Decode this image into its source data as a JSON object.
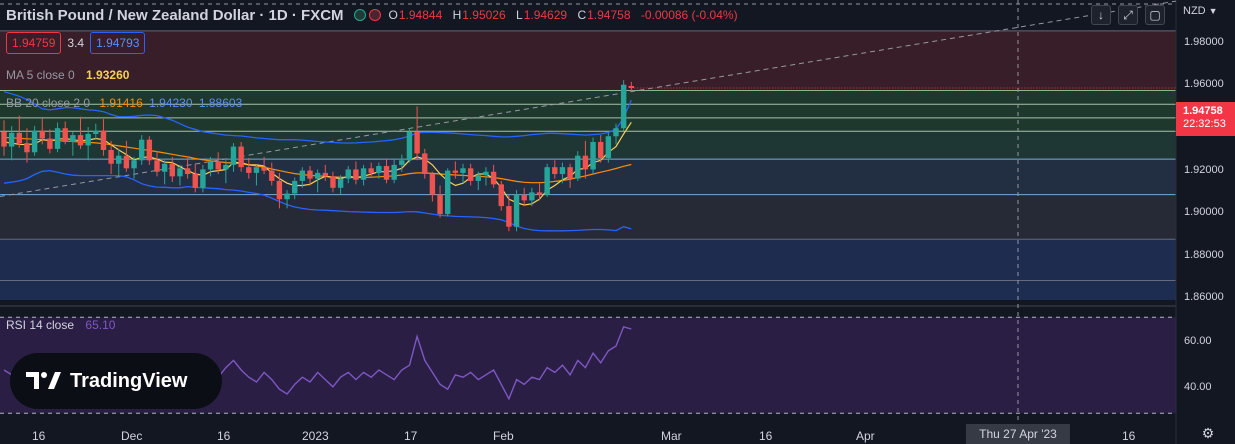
{
  "header": {
    "symbol_title": "British Pound / New Zealand Dollar · 1D · FXCM",
    "ohlc": [
      {
        "key": "O",
        "value": "1.94844"
      },
      {
        "key": "H",
        "value": "1.95026"
      },
      {
        "key": "L",
        "value": "1.94629"
      },
      {
        "key": "C",
        "value": "1.94758"
      }
    ],
    "change": "-0.00086 (-0.04%)"
  },
  "trade": {
    "sell": "1.94759",
    "spread": "3.4",
    "buy": "1.94793"
  },
  "indicators": {
    "ma": {
      "label": "MA 5 close 0",
      "value": "1.93260",
      "color": "#f7d154"
    },
    "bb": {
      "label": "BB 20 close 2 0",
      "basis": "1.91416",
      "upper": "1.94230",
      "lower": "1.88603",
      "basis_color": "#ff8c00",
      "band_color": "#2962ff"
    },
    "rsi": {
      "label": "RSI 14 close",
      "value": "65.10",
      "color": "#7e57c2"
    }
  },
  "toolbar": {
    "down_icon": "arrow-down-icon",
    "collapse_icon": "collapse-icon",
    "fullscreen_icon": "fullscreen-icon"
  },
  "axis": {
    "currency": "NZD",
    "settings_icon": "gear-icon"
  },
  "current_price": {
    "value": "1.94758",
    "countdown": "22:32:53"
  },
  "crosshair_date": "Thu 27 Apr '23",
  "logo": {
    "text": "TradingView"
  },
  "colors": {
    "up": "#26a69a",
    "down": "#ef5350",
    "background": "#131722",
    "accent": "#f23645"
  },
  "chart_data": [
    {
      "type": "candlestick",
      "title": "British Pound / New Zealand Dollar · 1D · FXCM",
      "y_ticks": [
        "1.98000",
        "1.96000",
        "1.92000",
        "1.90000",
        "1.88000",
        "1.86000"
      ],
      "x_ticks": [
        "16",
        "Dec",
        "16",
        "2023",
        "17",
        "Feb",
        "Mar",
        "16",
        "Apr",
        "16"
      ],
      "ylim": [
        1.855,
        1.9825
      ],
      "candles": [
        {
          "o": 1.9285,
          "h": 1.9335,
          "l": 1.918,
          "c": 1.922
        },
        {
          "o": 1.922,
          "h": 1.931,
          "l": 1.916,
          "c": 1.928
        },
        {
          "o": 1.928,
          "h": 1.9355,
          "l": 1.9215,
          "c": 1.9235
        },
        {
          "o": 1.9235,
          "h": 1.93,
          "l": 1.915,
          "c": 1.9195
        },
        {
          "o": 1.9195,
          "h": 1.931,
          "l": 1.918,
          "c": 1.929
        },
        {
          "o": 1.929,
          "h": 1.9345,
          "l": 1.923,
          "c": 1.9255
        },
        {
          "o": 1.9255,
          "h": 1.9295,
          "l": 1.919,
          "c": 1.921
        },
        {
          "o": 1.921,
          "h": 1.9325,
          "l": 1.9195,
          "c": 1.93
        },
        {
          "o": 1.93,
          "h": 1.933,
          "l": 1.923,
          "c": 1.924
        },
        {
          "o": 1.924,
          "h": 1.9285,
          "l": 1.918,
          "c": 1.927
        },
        {
          "o": 1.927,
          "h": 1.935,
          "l": 1.921,
          "c": 1.9225
        },
        {
          "o": 1.9225,
          "h": 1.9305,
          "l": 1.916,
          "c": 1.9275
        },
        {
          "o": 1.9275,
          "h": 1.932,
          "l": 1.925,
          "c": 1.929
        },
        {
          "o": 1.929,
          "h": 1.934,
          "l": 1.918,
          "c": 1.9205
        },
        {
          "o": 1.9205,
          "h": 1.9245,
          "l": 1.91,
          "c": 1.9145
        },
        {
          "o": 1.9145,
          "h": 1.921,
          "l": 1.9085,
          "c": 1.918
        },
        {
          "o": 1.918,
          "h": 1.9245,
          "l": 1.911,
          "c": 1.9125
        },
        {
          "o": 1.9125,
          "h": 1.9175,
          "l": 1.908,
          "c": 1.916
        },
        {
          "o": 1.916,
          "h": 1.927,
          "l": 1.914,
          "c": 1.925
        },
        {
          "o": 1.925,
          "h": 1.9265,
          "l": 1.914,
          "c": 1.916
        },
        {
          "o": 1.916,
          "h": 1.92,
          "l": 1.909,
          "c": 1.911
        },
        {
          "o": 1.911,
          "h": 1.916,
          "l": 1.9055,
          "c": 1.9145
        },
        {
          "o": 1.9145,
          "h": 1.9175,
          "l": 1.9065,
          "c": 1.909
        },
        {
          "o": 1.909,
          "h": 1.914,
          "l": 1.905,
          "c": 1.9125
        },
        {
          "o": 1.9125,
          "h": 1.917,
          "l": 1.908,
          "c": 1.91
        },
        {
          "o": 1.91,
          "h": 1.9145,
          "l": 1.902,
          "c": 1.904
        },
        {
          "o": 1.904,
          "h": 1.914,
          "l": 1.902,
          "c": 1.912
        },
        {
          "o": 1.912,
          "h": 1.9175,
          "l": 1.909,
          "c": 1.9155
        },
        {
          "o": 1.9155,
          "h": 1.9195,
          "l": 1.91,
          "c": 1.912
        },
        {
          "o": 1.912,
          "h": 1.916,
          "l": 1.906,
          "c": 1.914
        },
        {
          "o": 1.914,
          "h": 1.9235,
          "l": 1.911,
          "c": 1.922
        },
        {
          "o": 1.922,
          "h": 1.924,
          "l": 1.911,
          "c": 1.913
        },
        {
          "o": 1.913,
          "h": 1.917,
          "l": 1.908,
          "c": 1.9105
        },
        {
          "o": 1.9105,
          "h": 1.914,
          "l": 1.905,
          "c": 1.913
        },
        {
          "o": 1.913,
          "h": 1.9175,
          "l": 1.91,
          "c": 1.9115
        },
        {
          "o": 1.9115,
          "h": 1.915,
          "l": 1.905,
          "c": 1.907
        },
        {
          "o": 1.907,
          "h": 1.9105,
          "l": 1.895,
          "c": 1.899
        },
        {
          "o": 1.899,
          "h": 1.903,
          "l": 1.895,
          "c": 1.9015
        },
        {
          "o": 1.9015,
          "h": 1.9085,
          "l": 1.899,
          "c": 1.907
        },
        {
          "o": 1.907,
          "h": 1.913,
          "l": 1.904,
          "c": 1.9115
        },
        {
          "o": 1.9115,
          "h": 1.9135,
          "l": 1.905,
          "c": 1.908
        },
        {
          "o": 1.908,
          "h": 1.912,
          "l": 1.902,
          "c": 1.9105
        },
        {
          "o": 1.9105,
          "h": 1.914,
          "l": 1.907,
          "c": 1.909
        },
        {
          "o": 1.909,
          "h": 1.911,
          "l": 1.902,
          "c": 1.904
        },
        {
          "o": 1.904,
          "h": 1.9095,
          "l": 1.901,
          "c": 1.908
        },
        {
          "o": 1.908,
          "h": 1.9135,
          "l": 1.906,
          "c": 1.912
        },
        {
          "o": 1.912,
          "h": 1.9155,
          "l": 1.9055,
          "c": 1.9075
        },
        {
          "o": 1.9075,
          "h": 1.914,
          "l": 1.905,
          "c": 1.9125
        },
        {
          "o": 1.9125,
          "h": 1.915,
          "l": 1.909,
          "c": 1.9105
        },
        {
          "o": 1.9105,
          "h": 1.915,
          "l": 1.908,
          "c": 1.9135
        },
        {
          "o": 1.9135,
          "h": 1.9165,
          "l": 1.906,
          "c": 1.9075
        },
        {
          "o": 1.9075,
          "h": 1.9165,
          "l": 1.906,
          "c": 1.914
        },
        {
          "o": 1.914,
          "h": 1.9185,
          "l": 1.911,
          "c": 1.916
        },
        {
          "o": 1.916,
          "h": 1.93,
          "l": 1.915,
          "c": 1.9285
        },
        {
          "o": 1.9285,
          "h": 1.9395,
          "l": 1.916,
          "c": 1.919
        },
        {
          "o": 1.919,
          "h": 1.921,
          "l": 1.908,
          "c": 1.91
        },
        {
          "o": 1.91,
          "h": 1.911,
          "l": 1.898,
          "c": 1.901
        },
        {
          "o": 1.901,
          "h": 1.905,
          "l": 1.891,
          "c": 1.8925
        },
        {
          "o": 1.8925,
          "h": 1.9125,
          "l": 1.8915,
          "c": 1.9115
        },
        {
          "o": 1.9115,
          "h": 1.9155,
          "l": 1.908,
          "c": 1.9105
        },
        {
          "o": 1.9105,
          "h": 1.9145,
          "l": 1.906,
          "c": 1.9125
        },
        {
          "o": 1.9125,
          "h": 1.9145,
          "l": 1.905,
          "c": 1.907
        },
        {
          "o": 1.907,
          "h": 1.911,
          "l": 1.903,
          "c": 1.9095
        },
        {
          "o": 1.9095,
          "h": 1.913,
          "l": 1.905,
          "c": 1.911
        },
        {
          "o": 1.911,
          "h": 1.914,
          "l": 1.904,
          "c": 1.9055
        },
        {
          "o": 1.9055,
          "h": 1.907,
          "l": 1.894,
          "c": 1.896
        },
        {
          "o": 1.896,
          "h": 1.901,
          "l": 1.885,
          "c": 1.887
        },
        {
          "o": 1.887,
          "h": 1.903,
          "l": 1.885,
          "c": 1.901
        },
        {
          "o": 1.901,
          "h": 1.904,
          "l": 1.896,
          "c": 1.8985
        },
        {
          "o": 1.8985,
          "h": 1.904,
          "l": 1.896,
          "c": 1.902
        },
        {
          "o": 1.902,
          "h": 1.906,
          "l": 1.8985,
          "c": 1.901
        },
        {
          "o": 1.901,
          "h": 1.9145,
          "l": 1.9,
          "c": 1.913
        },
        {
          "o": 1.913,
          "h": 1.916,
          "l": 1.908,
          "c": 1.91
        },
        {
          "o": 1.91,
          "h": 1.915,
          "l": 1.906,
          "c": 1.913
        },
        {
          "o": 1.913,
          "h": 1.9145,
          "l": 1.904,
          "c": 1.908
        },
        {
          "o": 1.908,
          "h": 1.92,
          "l": 1.907,
          "c": 1.918
        },
        {
          "o": 1.918,
          "h": 1.9245,
          "l": 1.908,
          "c": 1.912
        },
        {
          "o": 1.912,
          "h": 1.926,
          "l": 1.91,
          "c": 1.924
        },
        {
          "o": 1.924,
          "h": 1.927,
          "l": 1.915,
          "c": 1.917
        },
        {
          "o": 1.917,
          "h": 1.928,
          "l": 1.915,
          "c": 1.9265
        },
        {
          "o": 1.9265,
          "h": 1.932,
          "l": 1.923,
          "c": 1.93
        },
        {
          "o": 1.93,
          "h": 1.951,
          "l": 1.929,
          "c": 1.949
        },
        {
          "o": 1.94844,
          "h": 1.95026,
          "l": 1.94629,
          "c": 1.94758
        }
      ],
      "ma5": [
        1.924,
        1.9235,
        1.923,
        1.9228,
        1.9232,
        1.925,
        1.9245,
        1.9252,
        1.9255,
        1.925,
        1.9245,
        1.9248,
        1.9255,
        1.925,
        1.9228,
        1.9205,
        1.9185,
        1.9162,
        1.9172,
        1.9175,
        1.9165,
        1.9152,
        1.915,
        1.9132,
        1.9115,
        1.91,
        1.9095,
        1.911,
        1.9115,
        1.912,
        1.915,
        1.915,
        1.914,
        1.914,
        1.9135,
        1.9105,
        1.908,
        1.906,
        1.905,
        1.905,
        1.9055,
        1.9075,
        1.909,
        1.9085,
        1.908,
        1.909,
        1.9085,
        1.909,
        1.91,
        1.911,
        1.911,
        1.9115,
        1.9125,
        1.916,
        1.9175,
        1.9165,
        1.914,
        1.91,
        1.907,
        1.905,
        1.906,
        1.9085,
        1.91,
        1.91,
        1.908,
        1.904,
        1.899,
        1.8975,
        1.8965,
        1.897,
        1.899,
        1.903,
        1.905,
        1.9075,
        1.909,
        1.912,
        1.9125,
        1.915,
        1.916,
        1.9195,
        1.922,
        1.9275,
        1.9326
      ],
      "bb_basis": [
        1.926,
        1.9258,
        1.9256,
        1.9254,
        1.9252,
        1.925,
        1.9248,
        1.9246,
        1.9244,
        1.9242,
        1.924,
        1.9238,
        1.9236,
        1.9233,
        1.9228,
        1.9223,
        1.9218,
        1.9213,
        1.9208,
        1.9203,
        1.9198,
        1.9192,
        1.9186,
        1.918,
        1.9175,
        1.9168,
        1.9162,
        1.9158,
        1.9154,
        1.915,
        1.9148,
        1.9145,
        1.914,
        1.9135,
        1.913,
        1.9122,
        1.9115,
        1.9108,
        1.9102,
        1.9098,
        1.9094,
        1.9092,
        1.909,
        1.9088,
        1.9086,
        1.9085,
        1.9085,
        1.9085,
        1.9086,
        1.9088,
        1.909,
        1.9092,
        1.9096,
        1.9102,
        1.9105,
        1.9105,
        1.9103,
        1.91,
        1.9098,
        1.9096,
        1.9094,
        1.9092,
        1.909,
        1.9088,
        1.9085,
        1.908,
        1.9074,
        1.9068,
        1.9064,
        1.9062,
        1.9062,
        1.9064,
        1.9068,
        1.9072,
        1.9078,
        1.9085,
        1.9092,
        1.91,
        1.9108,
        1.9116,
        1.9124,
        1.9134,
        1.91416
      ],
      "bb_upper": [
        1.946,
        1.945,
        1.944,
        1.9425,
        1.9405,
        1.9385,
        1.938,
        1.9385,
        1.939,
        1.939,
        1.9385,
        1.938,
        1.9378,
        1.9372,
        1.936,
        1.935,
        1.935,
        1.9352,
        1.9356,
        1.9358,
        1.9355,
        1.9345,
        1.9335,
        1.932,
        1.9305,
        1.9295,
        1.9285,
        1.928,
        1.9275,
        1.927,
        1.9268,
        1.9266,
        1.9262,
        1.9258,
        1.9255,
        1.9252,
        1.925,
        1.925,
        1.925,
        1.9248,
        1.9245,
        1.9242,
        1.924,
        1.9238,
        1.9236,
        1.9235,
        1.9236,
        1.9238,
        1.924,
        1.9243,
        1.9246,
        1.925,
        1.9256,
        1.9266,
        1.928,
        1.9282,
        1.9282,
        1.9281,
        1.928,
        1.9278,
        1.9275,
        1.9272,
        1.927,
        1.9268,
        1.9265,
        1.9262,
        1.9262,
        1.9265,
        1.9268,
        1.9272,
        1.9275,
        1.9278,
        1.9278,
        1.9276,
        1.9274,
        1.9272,
        1.927,
        1.9272,
        1.9275,
        1.9282,
        1.9295,
        1.9345,
        1.9423
      ],
      "bb_lower": [
        1.906,
        1.9065,
        1.907,
        1.908,
        1.9098,
        1.9112,
        1.9115,
        1.9108,
        1.91,
        1.9095,
        1.9093,
        1.9093,
        1.9093,
        1.9093,
        1.9093,
        1.9093,
        1.9088,
        1.9075,
        1.9058,
        1.9048,
        1.9043,
        1.9042,
        1.904,
        1.904,
        1.9045,
        1.9042,
        1.904,
        1.9038,
        1.9036,
        1.9032,
        1.903,
        1.9026,
        1.902,
        1.9015,
        1.9008,
        1.8995,
        1.898,
        1.8966,
        1.8956,
        1.895,
        1.8945,
        1.8943,
        1.8942,
        1.894,
        1.8938,
        1.8936,
        1.8935,
        1.8934,
        1.8933,
        1.8932,
        1.8932,
        1.8932,
        1.8934,
        1.8936,
        1.8935,
        1.893,
        1.8925,
        1.892,
        1.8917,
        1.8915,
        1.8914,
        1.8913,
        1.8912,
        1.891,
        1.8906,
        1.89,
        1.8888,
        1.8873,
        1.8862,
        1.8856,
        1.8853,
        1.8852,
        1.8852,
        1.8852,
        1.8853,
        1.8854,
        1.8856,
        1.8858,
        1.8858,
        1.8856,
        1.8853,
        1.887,
        1.88603
      ],
      "horizontal_levels": [
        1.9725,
        1.9465,
        1.9405,
        1.9345,
        1.9287,
        1.9165,
        1.901,
        1.8815,
        1.8635
      ],
      "trendline": {
        "from": {
          "index": 0,
          "price": 1.9005
        },
        "to": {
          "index": 82,
          "price": 1.946
        }
      }
    },
    {
      "type": "line",
      "title": "RSI 14 close",
      "y_ticks": [
        "60.00",
        "40.00"
      ],
      "ylim": [
        28,
        73
      ],
      "levels": [
        70,
        30
      ],
      "values": [
        48,
        46,
        44,
        47,
        50,
        48,
        46,
        49,
        51,
        50,
        47,
        49,
        51,
        52,
        47,
        43,
        45,
        42,
        46,
        49,
        45,
        42,
        44,
        40,
        43,
        41,
        45,
        47,
        45,
        49,
        52,
        48,
        45,
        43,
        47,
        44,
        40,
        38,
        42,
        45,
        43,
        47,
        44,
        41,
        45,
        47,
        44,
        47,
        45,
        48,
        46,
        44,
        48,
        50,
        62,
        52,
        47,
        42,
        40,
        46,
        45,
        47,
        44,
        46,
        48,
        42,
        36,
        44,
        42,
        45,
        44,
        49,
        47,
        50,
        46,
        52,
        49,
        55,
        51,
        56,
        58,
        66,
        65.1
      ]
    }
  ]
}
